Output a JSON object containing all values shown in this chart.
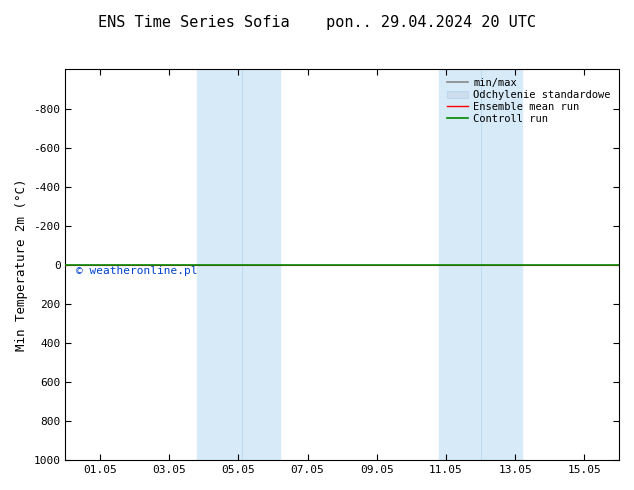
{
  "title_left": "ENS Time Series Sofia",
  "title_right": "pon.. 29.04.2024 20 UTC",
  "ylabel": "Min Temperature 2m (°C)",
  "ylim_top": -1000,
  "ylim_bottom": 1000,
  "yticks": [
    -800,
    -600,
    -400,
    -200,
    0,
    200,
    400,
    600,
    800,
    1000
  ],
  "xtick_labels": [
    "01.05",
    "03.05",
    "05.05",
    "07.05",
    "09.05",
    "11.05",
    "13.05",
    "15.05"
  ],
  "xtick_positions": [
    1,
    3,
    5,
    7,
    9,
    11,
    13,
    15
  ],
  "xlim": [
    0,
    16
  ],
  "shaded_regions": [
    [
      3.8,
      5.0
    ],
    [
      5.0,
      6.2
    ],
    [
      10.8,
      12.0
    ],
    [
      12.0,
      13.2
    ]
  ],
  "shaded_color": "#d6eaf8",
  "shaded_border_color": "#b0d4ee",
  "control_run_y": 0,
  "ensemble_mean_y": 0,
  "control_run_color": "#008800",
  "ensemble_mean_color": "#ff0000",
  "minmax_color": "#888888",
  "std_color": "#ccddee",
  "legend_labels": [
    "min/max",
    "Odchylenie standardowe",
    "Ensemble mean run",
    "Controll run"
  ],
  "watermark": "© weatheronline.pl",
  "watermark_color": "#0044cc",
  "background_color": "#ffffff",
  "title_fontsize": 11,
  "axis_label_fontsize": 9,
  "tick_fontsize": 8,
  "legend_fontsize": 7.5
}
